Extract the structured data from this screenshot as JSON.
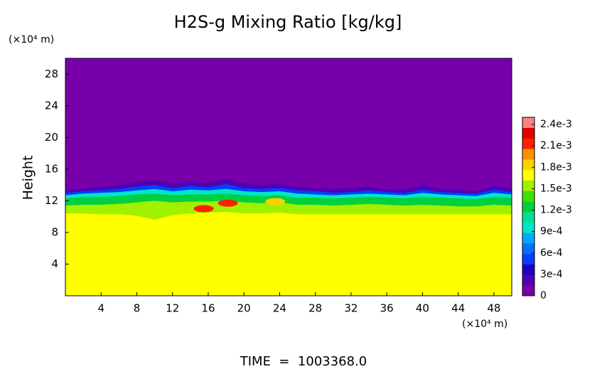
{
  "chart_data": {
    "type": "contour",
    "title": "H2S-g Mixing Ratio [kg/kg]",
    "x_unit": "(×10⁴ m)",
    "y_unit": "(×10⁴ m)",
    "ylabel": "Height",
    "footer": "TIME  =  1003368.0",
    "xlim": [
      0,
      50
    ],
    "ylim": [
      0,
      30
    ],
    "xticks": [
      4,
      8,
      12,
      16,
      20,
      24,
      28,
      32,
      36,
      40,
      44,
      48
    ],
    "yticks": [
      4,
      8,
      12,
      16,
      20,
      24,
      28
    ],
    "clim": [
      0,
      0.0025
    ],
    "colors": [
      "#7800aa",
      "#5000b4",
      "#2000c0",
      "#0040ff",
      "#0070ff",
      "#00a8ff",
      "#00e6c8",
      "#00e090",
      "#00d040",
      "#40e000",
      "#a0f000",
      "#ffff00",
      "#ffd000",
      "#ff9000",
      "#ff2000",
      "#e00000",
      "#ff8080"
    ],
    "cticks": [
      0,
      {
        "value": 0.0003,
        "label": "3e-4"
      },
      {
        "value": 0.0006,
        "label": "6e-4"
      },
      {
        "value": 0.0009,
        "label": "9e-4"
      },
      {
        "value": 0.0012,
        "label": "1.2e-3"
      },
      {
        "value": 0.0015,
        "label": "1.5e-3"
      },
      {
        "value": 0.0018,
        "label": "1.8e-3"
      },
      {
        "value": 0.0021,
        "label": "2.1e-3"
      },
      {
        "value": 0.0024,
        "label": "2.4e-3"
      }
    ],
    "x": [
      0,
      2,
      4,
      6,
      8,
      10,
      12,
      14,
      16,
      18,
      20,
      22,
      24,
      26,
      28,
      30,
      32,
      34,
      36,
      38,
      40,
      42,
      44,
      46,
      48,
      50
    ],
    "contours": [
      {
        "level": 0.0002,
        "heights": [
          13.3,
          13.6,
          13.8,
          14.0,
          14.4,
          14.6,
          14.2,
          14.5,
          14.3,
          14.8,
          14.2,
          14.0,
          14.2,
          13.8,
          13.6,
          13.5,
          13.6,
          13.8,
          13.5,
          13.4,
          14.0,
          13.5,
          13.4,
          13.2,
          13.9,
          13.6
        ]
      },
      {
        "level": 0.0005,
        "heights": [
          13.0,
          13.2,
          13.3,
          13.5,
          13.8,
          14.0,
          13.6,
          13.9,
          13.7,
          14.1,
          13.6,
          13.5,
          13.6,
          13.3,
          13.2,
          13.0,
          13.1,
          13.3,
          13.1,
          13.0,
          13.4,
          13.1,
          13.0,
          12.9,
          13.4,
          13.1
        ]
      },
      {
        "level": 0.0009,
        "heights": [
          12.7,
          12.9,
          13.0,
          13.1,
          13.3,
          13.5,
          13.2,
          13.4,
          13.3,
          13.5,
          13.2,
          13.1,
          13.2,
          12.9,
          12.8,
          12.7,
          12.8,
          12.9,
          12.8,
          12.7,
          13.0,
          12.8,
          12.7,
          12.6,
          13.0,
          12.8
        ]
      },
      {
        "level": 0.0012,
        "heights": [
          12.3,
          12.5,
          12.5,
          12.6,
          12.8,
          12.9,
          12.7,
          12.8,
          12.8,
          12.9,
          12.7,
          12.6,
          12.7,
          12.4,
          12.4,
          12.3,
          12.4,
          12.5,
          12.4,
          12.3,
          12.5,
          12.4,
          12.3,
          12.2,
          12.5,
          12.4
        ]
      },
      {
        "level": 0.0015,
        "heights": [
          11.4,
          11.5,
          11.5,
          11.6,
          11.8,
          12.0,
          11.8,
          11.9,
          11.9,
          12.0,
          11.8,
          11.7,
          11.8,
          11.5,
          11.5,
          11.4,
          11.5,
          11.6,
          11.5,
          11.4,
          11.5,
          11.4,
          11.3,
          11.3,
          11.5,
          11.4
        ]
      },
      {
        "level": 0.0017,
        "heights": [
          10.4,
          10.4,
          10.3,
          10.3,
          10.1,
          9.6,
          10.2,
          10.4,
          10.5,
          10.6,
          10.4,
          10.4,
          10.5,
          10.3,
          10.3,
          10.3,
          10.3,
          10.3,
          10.3,
          10.3,
          10.3,
          10.3,
          10.3,
          10.3,
          10.3,
          10.3
        ]
      }
    ],
    "hotspots": {
      "x": [
        15.5,
        18.2,
        23.5
      ],
      "y": [
        11.0,
        11.7,
        11.9
      ],
      "values": [
        0.0022,
        0.0021,
        0.0019
      ]
    }
  }
}
